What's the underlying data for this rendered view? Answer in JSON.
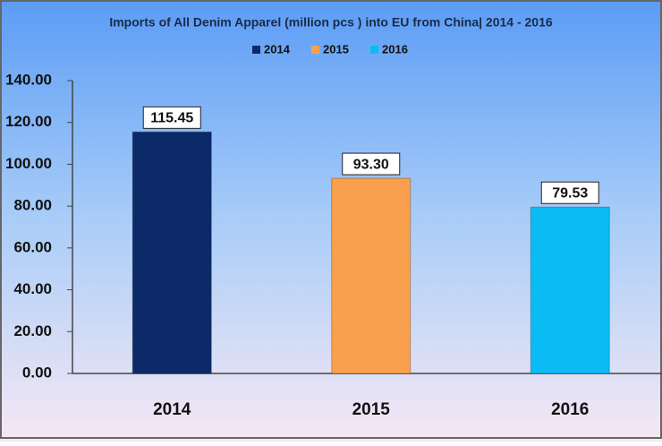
{
  "chart_data": {
    "type": "bar",
    "title": "Imports of All Denim Apparel (million pcs ) into EU from China| 2014 - 2016",
    "categories": [
      "2014",
      "2015",
      "2016"
    ],
    "values": [
      115.45,
      93.3,
      79.53
    ],
    "value_labels": [
      "115.45",
      "93.30",
      "79.53"
    ],
    "colors": [
      "#0d2a68",
      "#f9a04e",
      "#0bbcf4"
    ],
    "ylim": [
      0,
      140
    ],
    "yticks": [
      {
        "value": 0,
        "label": "0.00"
      },
      {
        "value": 20,
        "label": "20.00"
      },
      {
        "value": 40,
        "label": "40.00"
      },
      {
        "value": 60,
        "label": "60.00"
      },
      {
        "value": 80,
        "label": "80.00"
      },
      {
        "value": 100,
        "label": "100.00"
      },
      {
        "value": 120,
        "label": "120.00"
      },
      {
        "value": 140,
        "label": "140.00"
      }
    ],
    "legend": "top"
  }
}
